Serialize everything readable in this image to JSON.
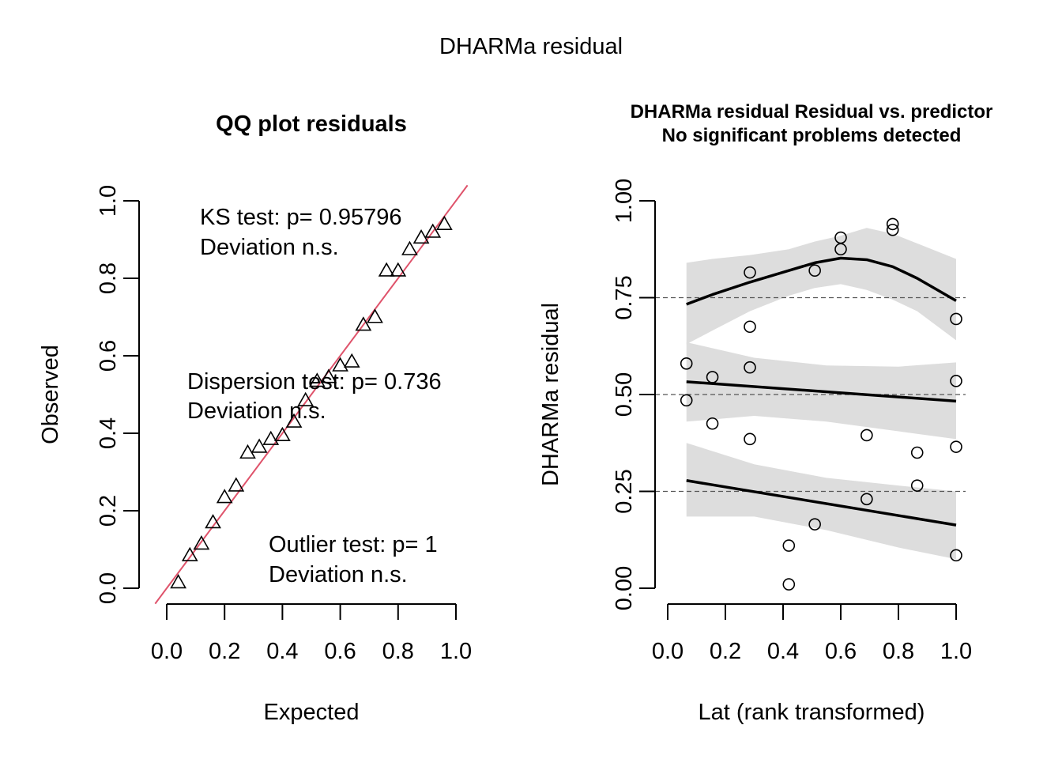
{
  "figure": {
    "main_title": "DHARMa residual"
  },
  "chart_data": [
    {
      "type": "scatter",
      "title": "QQ plot residuals",
      "xlabel": "Expected",
      "ylabel": "Observed",
      "xlim": [
        0,
        1
      ],
      "ylim": [
        0,
        1
      ],
      "x_ticks": [
        "0.0",
        "0.2",
        "0.4",
        "0.6",
        "0.8",
        "1.0"
      ],
      "y_ticks": [
        "0.0",
        "0.2",
        "0.4",
        "0.6",
        "0.8",
        "1.0"
      ],
      "grid": false,
      "points": [
        {
          "x": 0.04,
          "y": 0.015
        },
        {
          "x": 0.08,
          "y": 0.085
        },
        {
          "x": 0.12,
          "y": 0.115
        },
        {
          "x": 0.16,
          "y": 0.17
        },
        {
          "x": 0.2,
          "y": 0.235
        },
        {
          "x": 0.24,
          "y": 0.265
        },
        {
          "x": 0.28,
          "y": 0.35
        },
        {
          "x": 0.32,
          "y": 0.365
        },
        {
          "x": 0.36,
          "y": 0.385
        },
        {
          "x": 0.4,
          "y": 0.395
        },
        {
          "x": 0.44,
          "y": 0.43
        },
        {
          "x": 0.48,
          "y": 0.485
        },
        {
          "x": 0.52,
          "y": 0.535
        },
        {
          "x": 0.56,
          "y": 0.545
        },
        {
          "x": 0.6,
          "y": 0.575
        },
        {
          "x": 0.64,
          "y": 0.585
        },
        {
          "x": 0.68,
          "y": 0.68
        },
        {
          "x": 0.72,
          "y": 0.7
        },
        {
          "x": 0.76,
          "y": 0.82
        },
        {
          "x": 0.8,
          "y": 0.82
        },
        {
          "x": 0.84,
          "y": 0.875
        },
        {
          "x": 0.88,
          "y": 0.905
        },
        {
          "x": 0.92,
          "y": 0.92
        },
        {
          "x": 0.96,
          "y": 0.94
        }
      ],
      "reference_line": {
        "intercept": 0,
        "slope": 1,
        "color": "#DF536B"
      },
      "annotations": [
        {
          "lines": [
            "KS test: p= 0.95796",
            "Deviation  n.s."
          ]
        },
        {
          "lines": [
            "Dispersion test: p= 0.736",
            "Deviation  n.s."
          ]
        },
        {
          "lines": [
            "Outlier test: p= 1",
            "Deviation  n.s."
          ]
        }
      ]
    },
    {
      "type": "scatter",
      "title": "DHARMa residual Residual vs. predictor",
      "subtitle": "No significant problems detected",
      "xlabel": "Lat (rank transformed)",
      "ylabel": "DHARMa residual",
      "xlim": [
        0,
        1
      ],
      "ylim": [
        0,
        1
      ],
      "x_ticks": [
        "0.0",
        "0.2",
        "0.4",
        "0.6",
        "0.8",
        "1.0"
      ],
      "y_ticks": [
        "0.00",
        "0.25",
        "0.50",
        "0.75",
        "1.00"
      ],
      "grid": false,
      "reference_lines_y": [
        0.25,
        0.5,
        0.75
      ],
      "points": [
        {
          "x": 0.065,
          "y": 0.58
        },
        {
          "x": 0.065,
          "y": 0.485
        },
        {
          "x": 0.155,
          "y": 0.545
        },
        {
          "x": 0.155,
          "y": 0.425
        },
        {
          "x": 0.285,
          "y": 0.815
        },
        {
          "x": 0.285,
          "y": 0.675
        },
        {
          "x": 0.285,
          "y": 0.57
        },
        {
          "x": 0.285,
          "y": 0.385
        },
        {
          "x": 0.42,
          "y": 0.11
        },
        {
          "x": 0.42,
          "y": 0.01
        },
        {
          "x": 0.51,
          "y": 0.82
        },
        {
          "x": 0.51,
          "y": 0.165
        },
        {
          "x": 0.6,
          "y": 0.905
        },
        {
          "x": 0.6,
          "y": 0.875
        },
        {
          "x": 0.69,
          "y": 0.395
        },
        {
          "x": 0.69,
          "y": 0.23
        },
        {
          "x": 0.78,
          "y": 0.94
        },
        {
          "x": 0.78,
          "y": 0.925
        },
        {
          "x": 0.865,
          "y": 0.35
        },
        {
          "x": 0.865,
          "y": 0.265
        },
        {
          "x": 1.0,
          "y": 0.695
        },
        {
          "x": 1.0,
          "y": 0.535
        },
        {
          "x": 1.0,
          "y": 0.365
        },
        {
          "x": 1.0,
          "y": 0.085
        }
      ],
      "quantile_fits": [
        {
          "quantile": 0.75,
          "fit": [
            [
              0.065,
              0.733
            ],
            [
              0.155,
              0.758
            ],
            [
              0.285,
              0.79
            ],
            [
              0.42,
              0.82
            ],
            [
              0.51,
              0.84
            ],
            [
              0.6,
              0.852
            ],
            [
              0.69,
              0.848
            ],
            [
              0.78,
              0.83
            ],
            [
              0.865,
              0.8
            ],
            [
              1.0,
              0.742
            ]
          ],
          "band_upper": [
            [
              0.065,
              0.84
            ],
            [
              0.155,
              0.85
            ],
            [
              0.285,
              0.86
            ],
            [
              0.42,
              0.875
            ],
            [
              0.51,
              0.895
            ],
            [
              0.6,
              0.91
            ],
            [
              0.69,
              0.93
            ],
            [
              0.78,
              0.915
            ],
            [
              0.865,
              0.89
            ],
            [
              1.0,
              0.85
            ]
          ],
          "band_lower": [
            [
              0.065,
              0.63
            ],
            [
              0.155,
              0.665
            ],
            [
              0.285,
              0.715
            ],
            [
              0.42,
              0.755
            ],
            [
              0.51,
              0.775
            ],
            [
              0.6,
              0.785
            ],
            [
              0.69,
              0.77
            ],
            [
              0.78,
              0.745
            ],
            [
              0.865,
              0.715
            ],
            [
              1.0,
              0.64
            ]
          ]
        },
        {
          "quantile": 0.5,
          "fit": [
            [
              0.065,
              0.533
            ],
            [
              1.0,
              0.483
            ]
          ],
          "band_upper": [
            [
              0.065,
              0.635
            ],
            [
              0.3,
              0.595
            ],
            [
              0.55,
              0.575
            ],
            [
              0.8,
              0.572
            ],
            [
              1.0,
              0.583
            ]
          ],
          "band_lower": [
            [
              0.065,
              0.43
            ],
            [
              0.3,
              0.445
            ],
            [
              0.55,
              0.43
            ],
            [
              0.8,
              0.405
            ],
            [
              1.0,
              0.385
            ]
          ]
        },
        {
          "quantile": 0.25,
          "fit": [
            [
              0.065,
              0.278
            ],
            [
              1.0,
              0.163
            ]
          ],
          "band_upper": [
            [
              0.065,
              0.375
            ],
            [
              0.3,
              0.32
            ],
            [
              0.55,
              0.285
            ],
            [
              0.8,
              0.265
            ],
            [
              1.0,
              0.25
            ]
          ],
          "band_lower": [
            [
              0.065,
              0.185
            ],
            [
              0.3,
              0.185
            ],
            [
              0.55,
              0.15
            ],
            [
              0.8,
              0.105
            ],
            [
              1.0,
              0.075
            ]
          ]
        }
      ],
      "colors": {
        "band": "#DDDDDD",
        "fit": "#000000",
        "reference": "#555555"
      }
    }
  ]
}
